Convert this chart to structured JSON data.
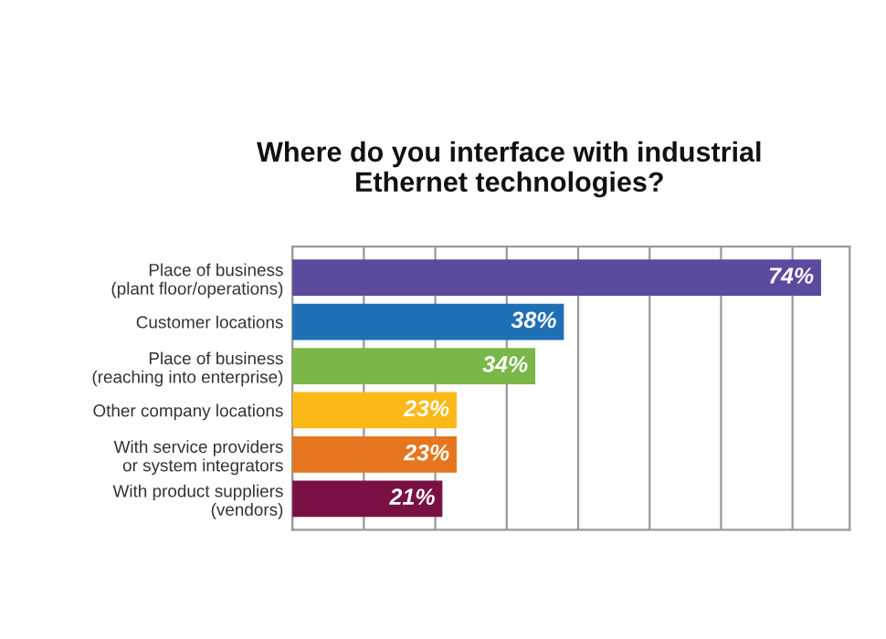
{
  "chart_data": {
    "type": "bar",
    "orientation": "horizontal",
    "title": "Where do you interface with industrial\nEthernet technologies?",
    "categories": [
      "Place of business\n(plant floor/operations)",
      "Customer locations",
      "Place of business\n(reaching into enterprise)",
      "Other company locations",
      "With service providers\nor system integrators",
      "With product suppliers\n(vendors)"
    ],
    "values": [
      74,
      38,
      34,
      23,
      23,
      21
    ],
    "colors": [
      "#5b4a9e",
      "#1f6fb5",
      "#7ab648",
      "#fbb917",
      "#e5761f",
      "#7a1145"
    ],
    "value_labels": [
      "74%",
      "38%",
      "34%",
      "23%",
      "23%",
      "21%"
    ],
    "xlim": [
      0,
      78
    ],
    "xticks": [
      {
        "value": 0,
        "label": null
      },
      {
        "value": 10,
        "label": null
      },
      {
        "value": 20,
        "label": null
      },
      {
        "value": 30,
        "label": null
      },
      {
        "value": 40,
        "label": null
      },
      {
        "value": 50,
        "label": null
      },
      {
        "value": 60,
        "label": null
      },
      {
        "value": 70,
        "label": null
      }
    ],
    "grid": "x",
    "tick_labels": "y",
    "legend": false
  }
}
